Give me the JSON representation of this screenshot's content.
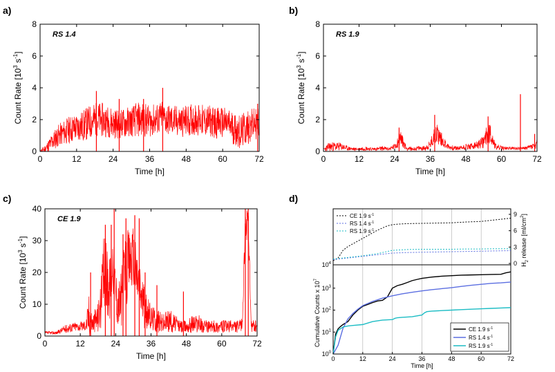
{
  "panel_labels": [
    "a)",
    "b)",
    "c)",
    "d)"
  ],
  "colors": {
    "red": "#ff0000",
    "black": "#000000",
    "blue": "#5b6ee1",
    "cyan": "#1bbcc4",
    "grid": "#aaaaaa"
  },
  "chart_data": [
    {
      "type": "line",
      "panel": "a)",
      "tag": "RS 1.4",
      "xlabel": "Time [h]",
      "ylabel": "Count Rate [10",
      "ylabel_exp": "3",
      "ylabel_tail": " s",
      "ylabel_exp2": "-1",
      "ylabel_end": "]",
      "xlim": [
        0,
        72
      ],
      "ylim": [
        0,
        8
      ],
      "xticks": [
        0,
        12,
        24,
        36,
        48,
        60,
        72
      ],
      "yticks": [
        0,
        2,
        4,
        6,
        8
      ],
      "series": [
        {
          "color": "#ff0000",
          "x": [
            0,
            2,
            4,
            6,
            8,
            10,
            12,
            14,
            16,
            18,
            20,
            22,
            24,
            26,
            28,
            30,
            32,
            34,
            36,
            38,
            40,
            42,
            44,
            46,
            48,
            50,
            52,
            54,
            56,
            58,
            60,
            62,
            64,
            66,
            68,
            70,
            72
          ],
          "center": [
            0.0,
            0.2,
            0.6,
            1.0,
            1.2,
            1.4,
            1.5,
            1.6,
            1.8,
            2.0,
            2.0,
            1.9,
            1.8,
            1.7,
            1.8,
            1.9,
            2.0,
            2.0,
            1.9,
            2.0,
            2.1,
            2.0,
            1.9,
            1.9,
            1.9,
            2.0,
            2.0,
            1.9,
            1.9,
            1.8,
            1.8,
            1.7,
            1.4,
            1.2,
            1.5,
            1.7,
            1.8
          ],
          "band": [
            0.1,
            0.3,
            0.6,
            0.7,
            0.8,
            0.9,
            0.9,
            1.0,
            1.1,
            1.1,
            1.1,
            1.0,
            1.0,
            0.9,
            1.0,
            1.0,
            1.1,
            1.1,
            1.0,
            1.0,
            1.1,
            1.0,
            1.0,
            1.0,
            1.0,
            1.0,
            1.0,
            1.0,
            1.0,
            1.0,
            1.0,
            1.0,
            1.1,
            1.1,
            1.1,
            1.0,
            1.0
          ],
          "peaks": [
            [
              18.5,
              3.8
            ],
            [
              40.3,
              4.0
            ],
            [
              26,
              3.3
            ],
            [
              34,
              3.3
            ],
            [
              71.5,
              3.0
            ]
          ]
        }
      ]
    },
    {
      "type": "line",
      "panel": "b)",
      "tag": "RS 1.9",
      "xlabel": "Time [h]",
      "ylabel": "Count Rate [10",
      "ylabel_exp": "3",
      "ylabel_tail": " s",
      "ylabel_exp2": "-1",
      "ylabel_end": "]",
      "xlim": [
        0,
        72
      ],
      "ylim": [
        0,
        8
      ],
      "xticks": [
        0,
        12,
        24,
        36,
        48,
        60,
        72
      ],
      "yticks": [
        0,
        2,
        4,
        6,
        8
      ],
      "series": [
        {
          "color": "#ff0000",
          "x": [
            0,
            2,
            4,
            6,
            8,
            10,
            12,
            14,
            16,
            18,
            20,
            22,
            24,
            25,
            26,
            27,
            28,
            30,
            32,
            34,
            36,
            37,
            38,
            39,
            40,
            41,
            42,
            44,
            46,
            48,
            50,
            52,
            54,
            55,
            56,
            57,
            58,
            60,
            62,
            64,
            66,
            68,
            70,
            72
          ],
          "center": [
            0.1,
            0.3,
            0.3,
            0.3,
            0.2,
            0.15,
            0.15,
            0.2,
            0.15,
            0.15,
            0.2,
            0.15,
            0.3,
            0.6,
            0.9,
            0.5,
            0.2,
            0.15,
            0.2,
            0.2,
            0.4,
            0.8,
            1.2,
            1.0,
            0.7,
            0.5,
            0.3,
            0.2,
            0.2,
            0.3,
            0.3,
            0.4,
            0.6,
            1.0,
            1.2,
            0.8,
            0.3,
            0.2,
            0.2,
            0.2,
            0.2,
            0.2,
            0.3,
            0.4
          ],
          "band": [
            0.1,
            0.3,
            0.3,
            0.25,
            0.15,
            0.1,
            0.1,
            0.15,
            0.1,
            0.1,
            0.15,
            0.1,
            0.2,
            0.4,
            0.5,
            0.3,
            0.15,
            0.1,
            0.15,
            0.15,
            0.3,
            0.5,
            0.7,
            0.6,
            0.4,
            0.3,
            0.2,
            0.15,
            0.15,
            0.2,
            0.2,
            0.25,
            0.4,
            0.6,
            0.7,
            0.5,
            0.2,
            0.15,
            0.1,
            0.1,
            0.1,
            0.1,
            0.2,
            0.3
          ],
          "peaks": [
            [
              37.5,
              2.3
            ],
            [
              55.5,
              2.2
            ],
            [
              66.4,
              3.6
            ],
            [
              25.5,
              1.5
            ],
            [
              71.2,
              1.1
            ]
          ]
        }
      ]
    },
    {
      "type": "line",
      "panel": "c)",
      "tag": "CE 1.9",
      "xlabel": "Time [h]",
      "ylabel": "Count Rate [10",
      "ylabel_exp": "3",
      "ylabel_tail": " s",
      "ylabel_exp2": "-1",
      "ylabel_end": "]",
      "xlim": [
        0,
        72
      ],
      "ylim": [
        0,
        40
      ],
      "xticks": [
        0,
        12,
        24,
        36,
        48,
        60,
        72
      ],
      "yticks": [
        0,
        10,
        20,
        30,
        40
      ],
      "series": [
        {
          "color": "#ff0000",
          "x": [
            0,
            2,
            4,
            6,
            8,
            10,
            12,
            14,
            15,
            16,
            17,
            18,
            19,
            20,
            21,
            22,
            23,
            24,
            25,
            26,
            27,
            28,
            29,
            30,
            31,
            32,
            33,
            34,
            36,
            38,
            40,
            42,
            44,
            46,
            48,
            50,
            52,
            54,
            56,
            58,
            60,
            62,
            64,
            66,
            67,
            68,
            69,
            70,
            72
          ],
          "center": [
            1,
            1,
            1,
            2,
            2.5,
            3,
            3,
            3.5,
            7,
            4,
            5,
            6,
            10,
            20,
            18,
            15,
            25,
            14,
            10,
            12,
            18,
            22,
            25,
            24,
            20,
            16,
            12,
            8,
            6,
            5,
            4,
            5,
            4,
            3,
            3,
            4,
            4,
            3,
            3,
            3,
            3,
            3,
            3,
            3,
            4,
            35,
            35,
            3,
            3
          ],
          "band": [
            0.5,
            0.5,
            0.5,
            1,
            1.5,
            1.5,
            1.5,
            2,
            8,
            3,
            4,
            5,
            8,
            12,
            12,
            10,
            10,
            8,
            8,
            10,
            12,
            12,
            10,
            10,
            10,
            8,
            8,
            6,
            4,
            4,
            3,
            4,
            3,
            2,
            2,
            3,
            3,
            2,
            2,
            2,
            2,
            2,
            2,
            2,
            2,
            5,
            5,
            2,
            2
          ],
          "peaks": [
            [
              15.5,
              20
            ],
            [
              20.5,
              35
            ],
            [
              22.5,
              35
            ],
            [
              23.5,
              40
            ],
            [
              26.5,
              32
            ],
            [
              27.5,
              37
            ],
            [
              30.5,
              38
            ],
            [
              32,
              37
            ],
            [
              34,
              20
            ],
            [
              38,
              16
            ],
            [
              47,
              14
            ],
            [
              68,
              40
            ],
            [
              69,
              40
            ]
          ]
        }
      ]
    },
    {
      "type": "line",
      "panel": "d)",
      "xlabel": "Time [h]",
      "ylabel": "Cumulative Counts x 10",
      "ylabel_exp": "7",
      "ylabel2": "H",
      "ylabel2_sub": "2",
      "ylabel2_tail": " release [ml/cm",
      "ylabel2_exp": "2",
      "ylabel2_end": "]",
      "xlim": [
        0,
        72
      ],
      "ylim": [
        1,
        10000
      ],
      "yscale": "log",
      "y2lim": [
        0,
        9
      ],
      "xticks": [
        0,
        12,
        24,
        36,
        48,
        60,
        72
      ],
      "ytick_bases": [
        "10",
        "10",
        "10",
        "10"
      ],
      "ytick_exps": [
        "0",
        "1",
        "2",
        "3"
      ],
      "ytick_values": [
        1,
        10,
        100,
        1000
      ],
      "top_ytick_base": "10",
      "top_ytick_exp": "4",
      "y2ticks": [
        0,
        3,
        6,
        9
      ],
      "vgrid": [
        12,
        24,
        36,
        48,
        60
      ],
      "top_series": [
        {
          "name": "CE 1.9 s",
          "name_exp": "-1",
          "color": "#000000",
          "style": "dashed",
          "x": [
            0,
            2,
            4,
            6,
            8,
            10,
            12,
            14,
            16,
            18,
            20,
            22,
            24,
            26,
            28,
            30,
            36,
            42,
            48,
            54,
            60,
            66,
            72
          ],
          "y": [
            0.5,
            1.0,
            2.4,
            3.1,
            3.6,
            4.1,
            4.6,
            5.1,
            5.6,
            6.1,
            6.5,
            6.9,
            7.1,
            7.2,
            7.25,
            7.3,
            7.35,
            7.4,
            7.45,
            7.6,
            7.7,
            8.0,
            8.3
          ]
        },
        {
          "name": "RS 1.4 s",
          "name_exp": "-1",
          "color": "#5b6ee1",
          "style": "dashed",
          "x": [
            0,
            6,
            12,
            18,
            22,
            24,
            30,
            36,
            42,
            48,
            54,
            60,
            66,
            72
          ],
          "y": [
            0.7,
            1.0,
            1.3,
            1.6,
            1.8,
            1.9,
            2.0,
            2.05,
            2.1,
            2.15,
            2.2,
            2.25,
            2.3,
            2.35
          ]
        },
        {
          "name": "RS 1.9 s",
          "name_exp": "-1",
          "color": "#1bbcc4",
          "style": "dashed",
          "x": [
            0,
            6,
            12,
            18,
            22,
            24,
            30,
            36,
            42,
            48,
            54,
            60,
            66,
            72
          ],
          "y": [
            0.8,
            1.1,
            1.4,
            1.8,
            2.2,
            2.4,
            2.55,
            2.6,
            2.6,
            2.6,
            2.65,
            2.65,
            2.7,
            2.7
          ]
        }
      ],
      "bottom_series": [
        {
          "name": "CE 1.9 s",
          "name_exp": "-1",
          "color": "#000000",
          "x": [
            0,
            1,
            2,
            3,
            4,
            6,
            8,
            10,
            12,
            14,
            16,
            18,
            20,
            22,
            24,
            26,
            28,
            30,
            32,
            34,
            36,
            40,
            44,
            48,
            52,
            56,
            60,
            64,
            68,
            70,
            72
          ],
          "y": [
            1,
            8,
            14,
            18,
            22,
            30,
            60,
            100,
            150,
            180,
            220,
            260,
            280,
            400,
            1000,
            1300,
            1500,
            1800,
            2200,
            2500,
            2800,
            3200,
            3500,
            3700,
            3900,
            4000,
            4100,
            4200,
            4300,
            5000,
            5500
          ]
        },
        {
          "name": "RS 1.4 s",
          "name_exp": "-1",
          "color": "#5b6ee1",
          "x": [
            0,
            2,
            4,
            6,
            8,
            10,
            12,
            16,
            20,
            24,
            28,
            32,
            36,
            40,
            44,
            48,
            52,
            56,
            60,
            64,
            68,
            72
          ],
          "y": [
            1,
            2.5,
            15,
            40,
            70,
            110,
            160,
            250,
            350,
            450,
            550,
            650,
            750,
            850,
            950,
            1050,
            1200,
            1350,
            1500,
            1650,
            1750,
            1900
          ]
        },
        {
          "name": "RS 1.9 s",
          "name_exp": "-1",
          "color": "#1bbcc4",
          "x": [
            0,
            1,
            2,
            4,
            6,
            8,
            12,
            16,
            20,
            22,
            24,
            25,
            26,
            28,
            32,
            36,
            37,
            38,
            40,
            44,
            48,
            52,
            56,
            60,
            64,
            68,
            72
          ],
          "y": [
            1,
            6,
            12,
            17,
            19,
            20,
            22,
            30,
            35,
            36,
            37,
            42,
            45,
            47,
            50,
            60,
            75,
            85,
            90,
            95,
            100,
            105,
            110,
            115,
            120,
            125,
            130
          ]
        }
      ]
    }
  ]
}
